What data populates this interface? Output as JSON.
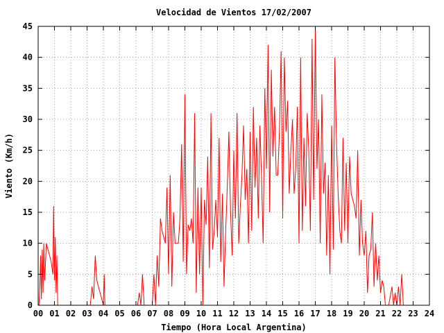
{
  "chart_data": {
    "type": "line",
    "title": "Velocidad de Vientos 17/02/2007",
    "xlabel": "Tiempo (Hora Local Argentina)",
    "ylabel": "Viento (Km/h)",
    "xlim": [
      0,
      24
    ],
    "ylim": [
      0,
      45
    ],
    "x_ticks": [
      "00",
      "01",
      "02",
      "03",
      "04",
      "05",
      "06",
      "07",
      "08",
      "09",
      "10",
      "11",
      "12",
      "13",
      "14",
      "15",
      "16",
      "17",
      "18",
      "19",
      "20",
      "21",
      "22",
      "23",
      "24"
    ],
    "y_ticks": [
      0,
      5,
      10,
      15,
      20,
      25,
      30,
      35,
      40,
      45
    ],
    "grid": true,
    "colors": {
      "series": "#ff0000"
    },
    "series": [
      {
        "values": [
          [
            0.05,
            0
          ],
          [
            0.1,
            3
          ],
          [
            0.15,
            8
          ],
          [
            0.2,
            1
          ],
          [
            0.25,
            9
          ],
          [
            0.3,
            2
          ],
          [
            0.35,
            10
          ],
          [
            0.4,
            4
          ],
          [
            0.5,
            10
          ],
          [
            0.6,
            9
          ],
          [
            0.7,
            8
          ],
          [
            0.8,
            7
          ],
          [
            0.9,
            5
          ],
          [
            0.95,
            16
          ],
          [
            1.0,
            4
          ],
          [
            1.05,
            11
          ],
          [
            1.1,
            2
          ],
          [
            1.15,
            8
          ],
          [
            1.2,
            0
          ],
          [
            1.3,
            0
          ],
          [
            3.2,
            0
          ],
          [
            3.3,
            3
          ],
          [
            3.4,
            1
          ],
          [
            3.5,
            8
          ],
          [
            3.6,
            4
          ],
          [
            3.7,
            3
          ],
          [
            3.8,
            2
          ],
          [
            3.9,
            1
          ],
          [
            4.0,
            0
          ],
          [
            4.05,
            5
          ],
          [
            4.1,
            0
          ],
          [
            4.2,
            0
          ],
          [
            6.1,
            0
          ],
          [
            6.2,
            2
          ],
          [
            6.3,
            0
          ],
          [
            6.4,
            5
          ],
          [
            6.5,
            0
          ],
          [
            7.0,
            0
          ],
          [
            7.1,
            5
          ],
          [
            7.2,
            0
          ],
          [
            7.3,
            8
          ],
          [
            7.4,
            3
          ],
          [
            7.5,
            14
          ],
          [
            7.6,
            12
          ],
          [
            7.7,
            11
          ],
          [
            7.8,
            10
          ],
          [
            7.9,
            19
          ],
          [
            8.0,
            5
          ],
          [
            8.1,
            21
          ],
          [
            8.2,
            3
          ],
          [
            8.3,
            15
          ],
          [
            8.4,
            10
          ],
          [
            8.5,
            10
          ],
          [
            8.6,
            10
          ],
          [
            8.7,
            14
          ],
          [
            8.8,
            26
          ],
          [
            8.9,
            7
          ],
          [
            9.0,
            34
          ],
          [
            9.1,
            5
          ],
          [
            9.2,
            13
          ],
          [
            9.3,
            12
          ],
          [
            9.4,
            14
          ],
          [
            9.5,
            10
          ],
          [
            9.6,
            31
          ],
          [
            9.7,
            2
          ],
          [
            9.8,
            19
          ],
          [
            9.9,
            5
          ],
          [
            10.0,
            19
          ],
          [
            10.1,
            0
          ],
          [
            10.2,
            17
          ],
          [
            10.3,
            13
          ],
          [
            10.4,
            24
          ],
          [
            10.5,
            6
          ],
          [
            10.6,
            31
          ],
          [
            10.7,
            9
          ],
          [
            10.8,
            12
          ],
          [
            10.9,
            17
          ],
          [
            11.0,
            11
          ],
          [
            11.1,
            27
          ],
          [
            11.2,
            7
          ],
          [
            11.3,
            18
          ],
          [
            11.4,
            3
          ],
          [
            11.5,
            12
          ],
          [
            11.6,
            19
          ],
          [
            11.7,
            28
          ],
          [
            11.8,
            15
          ],
          [
            11.9,
            8
          ],
          [
            12.0,
            25
          ],
          [
            12.1,
            14
          ],
          [
            12.2,
            31
          ],
          [
            12.3,
            10
          ],
          [
            12.4,
            16
          ],
          [
            12.5,
            21
          ],
          [
            12.6,
            29
          ],
          [
            12.7,
            17
          ],
          [
            12.8,
            22
          ],
          [
            12.9,
            10
          ],
          [
            13.0,
            28
          ],
          [
            13.1,
            12
          ],
          [
            13.2,
            32
          ],
          [
            13.3,
            19
          ],
          [
            13.4,
            27
          ],
          [
            13.5,
            14
          ],
          [
            13.6,
            29
          ],
          [
            13.7,
            21
          ],
          [
            13.8,
            10
          ],
          [
            13.9,
            35
          ],
          [
            14.0,
            22
          ],
          [
            14.1,
            42
          ],
          [
            14.2,
            15
          ],
          [
            14.3,
            38
          ],
          [
            14.4,
            24
          ],
          [
            14.5,
            32
          ],
          [
            14.6,
            21
          ],
          [
            14.7,
            21
          ],
          [
            14.8,
            28
          ],
          [
            14.9,
            41
          ],
          [
            15.0,
            14
          ],
          [
            15.1,
            40
          ],
          [
            15.2,
            28
          ],
          [
            15.3,
            33
          ],
          [
            15.4,
            18
          ],
          [
            15.5,
            25
          ],
          [
            15.6,
            30
          ],
          [
            15.7,
            18
          ],
          [
            15.8,
            22
          ],
          [
            15.9,
            32
          ],
          [
            16.0,
            10
          ],
          [
            16.1,
            40
          ],
          [
            16.2,
            12
          ],
          [
            16.3,
            27
          ],
          [
            16.4,
            16
          ],
          [
            16.5,
            31
          ],
          [
            16.6,
            25
          ],
          [
            16.7,
            12
          ],
          [
            16.8,
            43
          ],
          [
            16.9,
            17
          ],
          [
            17.0,
            45
          ],
          [
            17.1,
            22
          ],
          [
            17.2,
            30
          ],
          [
            17.3,
            10
          ],
          [
            17.4,
            34
          ],
          [
            17.5,
            18
          ],
          [
            17.6,
            23
          ],
          [
            17.7,
            8
          ],
          [
            17.8,
            21
          ],
          [
            17.9,
            5
          ],
          [
            18.0,
            29
          ],
          [
            18.1,
            9
          ],
          [
            18.2,
            40
          ],
          [
            18.3,
            26
          ],
          [
            18.4,
            18
          ],
          [
            18.5,
            12
          ],
          [
            18.6,
            10
          ],
          [
            18.7,
            27
          ],
          [
            18.8,
            12
          ],
          [
            18.9,
            23
          ],
          [
            19.0,
            10
          ],
          [
            19.1,
            24
          ],
          [
            19.2,
            18
          ],
          [
            19.3,
            17
          ],
          [
            19.4,
            16
          ],
          [
            19.5,
            14
          ],
          [
            19.6,
            25
          ],
          [
            19.7,
            8
          ],
          [
            19.8,
            17
          ],
          [
            19.9,
            10
          ],
          [
            20.0,
            8
          ],
          [
            20.1,
            12
          ],
          [
            20.2,
            2
          ],
          [
            20.3,
            8
          ],
          [
            20.4,
            9
          ],
          [
            20.5,
            15
          ],
          [
            20.6,
            3
          ],
          [
            20.7,
            10
          ],
          [
            20.8,
            4
          ],
          [
            20.9,
            8
          ],
          [
            21.0,
            2
          ],
          [
            21.1,
            4
          ],
          [
            21.2,
            3
          ],
          [
            21.3,
            0
          ],
          [
            21.5,
            0
          ],
          [
            21.7,
            3
          ],
          [
            21.8,
            0
          ],
          [
            21.9,
            2
          ],
          [
            22.0,
            0
          ],
          [
            22.1,
            3
          ],
          [
            22.2,
            0
          ],
          [
            22.3,
            5
          ],
          [
            22.4,
            0
          ],
          [
            22.5,
            0
          ]
        ]
      }
    ]
  }
}
